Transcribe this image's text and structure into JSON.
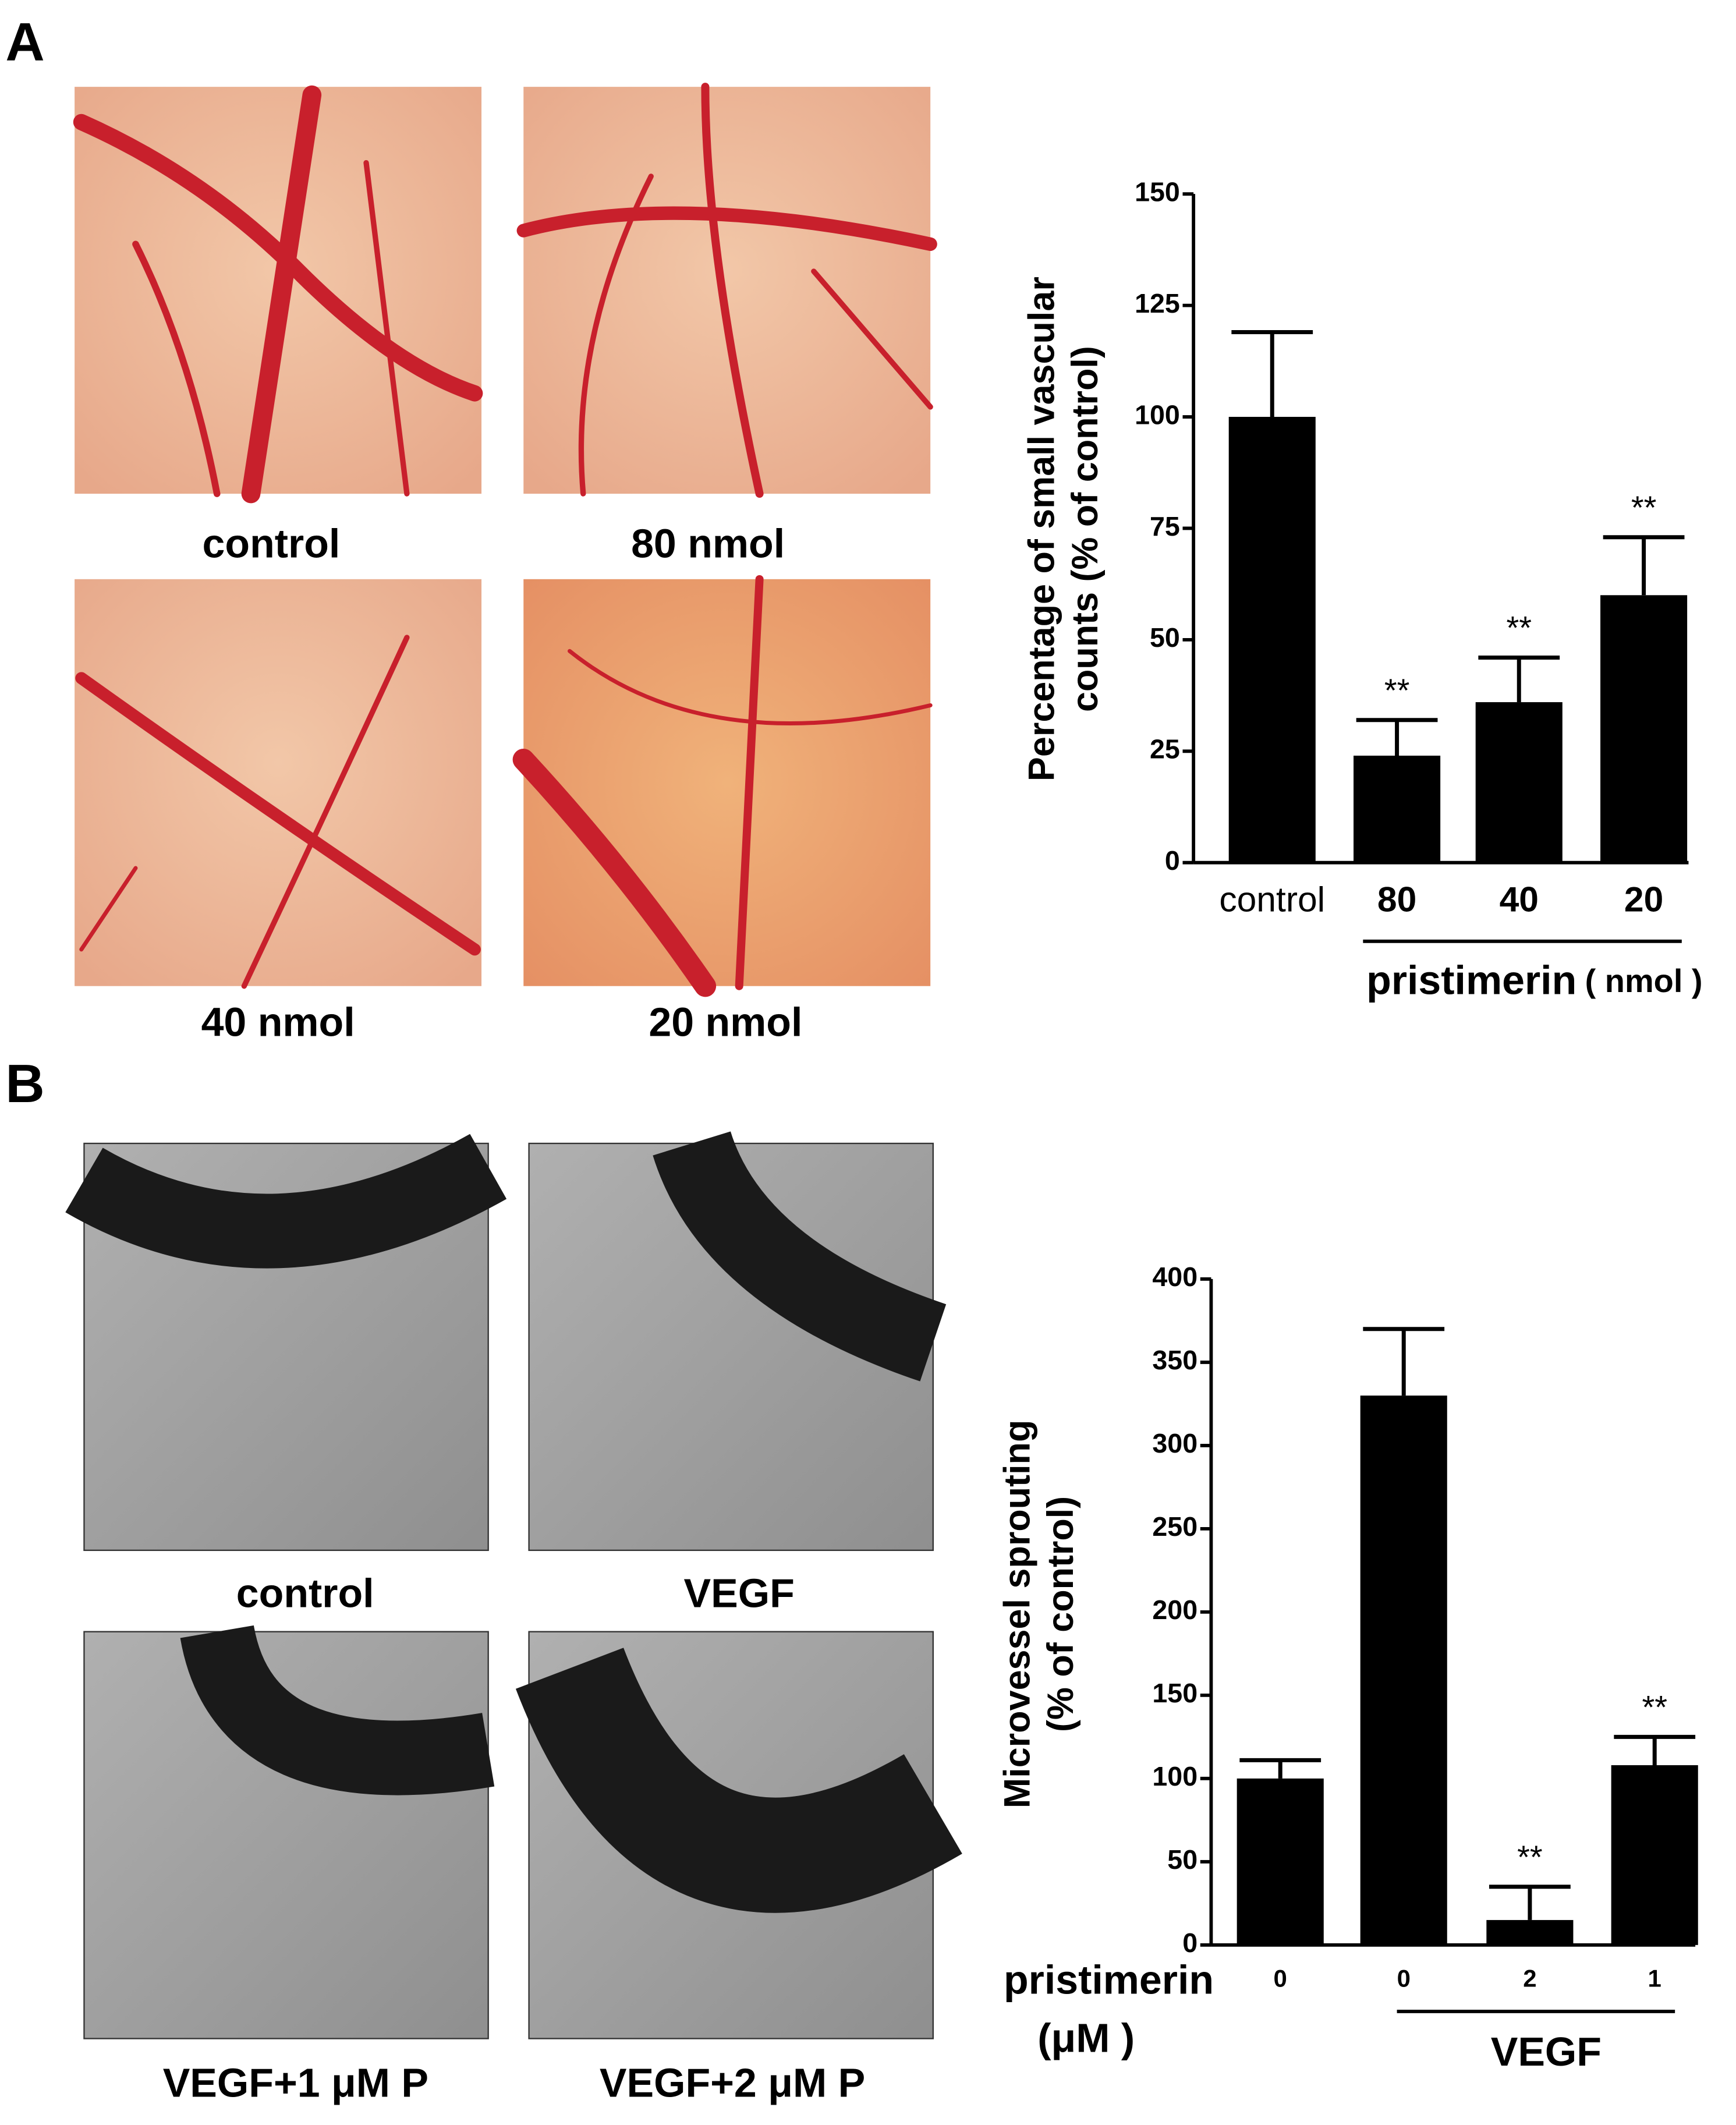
{
  "panel_labels": [
    "A",
    "B"
  ],
  "images_a": [
    "control",
    "80 nmol",
    "40 nmol",
    "20 nmol"
  ],
  "images_b": [
    "control",
    "VEGF",
    "VEGF+1 μM P",
    "VEGF+2 μM P"
  ],
  "chart_data": [
    {
      "type": "bar",
      "y_label": [
        "Percentage of small vascular",
        "counts (% of control)"
      ],
      "categories": [
        "control",
        "80",
        "40",
        "20"
      ],
      "values": [
        100,
        24,
        36,
        60
      ],
      "errors": [
        19,
        8,
        10,
        13
      ],
      "annotations": [
        null,
        "**",
        "**",
        "**"
      ],
      "color": "#000000",
      "ylim": [
        0,
        150
      ],
      "yticks": [
        0,
        25,
        50,
        75,
        100,
        125,
        150
      ],
      "group_label": "pristimerin",
      "group_unit": "( nmol )"
    },
    {
      "type": "bar",
      "y_label": [
        "Microvessel sprouting",
        "(% of control)"
      ],
      "categories": [
        "0",
        "0",
        "2",
        "1"
      ],
      "values": [
        100,
        330,
        15,
        108
      ],
      "errors": [
        11,
        40,
        20,
        17
      ],
      "annotations": [
        null,
        null,
        "**",
        "**"
      ],
      "color": "#000000",
      "ylim": [
        0,
        400
      ],
      "yticks": [
        0,
        50,
        100,
        150,
        200,
        250,
        300,
        350,
        400
      ],
      "row_label": [
        "pristimerin",
        "(μM )"
      ],
      "group_label": "VEGF"
    }
  ]
}
